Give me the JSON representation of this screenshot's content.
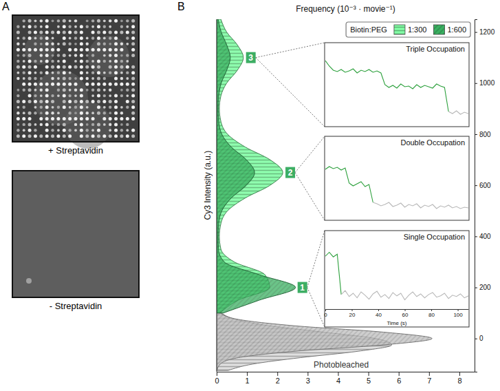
{
  "panels": {
    "A": {
      "label": "A",
      "captions": [
        "+ Streptavidin",
        "- Streptavidin"
      ]
    },
    "B": {
      "label": "B"
    }
  },
  "chart_data": [
    {
      "type": "area",
      "orientation": "horizontal",
      "x_label": "Frequency (10⁻³ · movie⁻¹)",
      "y_label": "Cy3 Intensity (a.u.)",
      "xlim": [
        0,
        8.5
      ],
      "xticks": [
        0,
        1,
        2,
        3,
        4,
        5,
        6,
        7,
        8
      ],
      "ylim": [
        -130,
        1250
      ],
      "yticks": [
        0,
        200,
        400,
        600,
        800,
        1000,
        1200
      ],
      "legend": "top-right",
      "legend_title": "Biotin:PEG",
      "y": [
        100,
        150,
        200,
        250,
        300,
        350,
        400,
        450,
        500,
        550,
        600,
        650,
        700,
        750,
        800,
        850,
        900,
        950,
        1000,
        1050,
        1100,
        1150,
        1200,
        1250
      ],
      "series": [
        {
          "name": "1:300",
          "color": "#5cb874",
          "values": [
            0.11,
            0.71,
            1.75,
            1.59,
            0.58,
            0.14,
            0.09,
            0.14,
            0.36,
            0.94,
            1.76,
            2.18,
            1.76,
            0.94,
            0.36,
            0.14,
            0.09,
            0.14,
            0.33,
            0.68,
            0.88,
            0.68,
            0.33,
            0.14
          ]
        },
        {
          "name": "1:600",
          "color": "#2f8f4e",
          "values": [
            0.22,
            1.4,
            2.6,
            1.4,
            0.25,
            0.06,
            0.05,
            0.07,
            0.17,
            0.48,
            0.98,
            1.25,
            0.98,
            0.48,
            0.17,
            0.07,
            0.05,
            0.07,
            0.15,
            0.33,
            0.45,
            0.33,
            0.15,
            0.05
          ]
        }
      ],
      "photobleached": {
        "label": "Photobleached",
        "color": "#9a9a9a",
        "y": [
          -125,
          -100,
          -75,
          -50,
          -25,
          0,
          25,
          50,
          75,
          100
        ],
        "series": [
          {
            "name": "1:300",
            "values": [
              0.38,
              1.19,
              2.75,
              4.65,
              5.77,
              5.25,
              3.52,
              1.73,
              0.62,
              0.16
            ]
          },
          {
            "name": "1:600",
            "values": [
              0.01,
              0.12,
              0.71,
              2.56,
              5.5,
              7.1,
              5.5,
              2.56,
              0.71,
              0.12
            ]
          }
        ]
      },
      "peaks": [
        {
          "label": "1",
          "x": 2.6,
          "y": 200
        },
        {
          "label": "2",
          "x": 2.2,
          "y": 650
        },
        {
          "label": "3",
          "x": 0.9,
          "y": 1100
        }
      ]
    },
    {
      "type": "line",
      "title": "Single Occupation",
      "x_label": "Time (s)",
      "tick_labels": "x",
      "x": [
        0,
        3,
        6,
        9,
        12,
        15,
        18,
        21,
        24,
        27,
        30,
        33,
        36,
        39,
        42,
        45,
        48,
        51,
        54,
        57,
        60,
        63,
        66,
        69,
        72,
        75,
        78,
        81,
        84,
        87,
        90,
        93,
        96,
        99,
        102,
        105,
        108
      ],
      "xlim": [
        0,
        108
      ],
      "xticks": [
        0,
        20,
        40,
        60,
        80,
        100
      ],
      "ylim": [
        0,
        1
      ],
      "series": [
        {
          "color": "#2ca03c",
          "values": [
            0.8,
            0.86,
            0.79,
            0.83,
            0.22,
            null,
            null,
            null,
            null,
            null,
            null,
            null,
            null,
            null,
            null,
            null,
            null,
            null,
            null,
            null,
            null,
            null,
            null,
            null,
            null,
            null,
            null,
            null,
            null,
            null,
            null,
            null,
            null,
            null,
            null,
            null,
            null
          ]
        },
        {
          "color": "#b8b8b8",
          "values": [
            null,
            null,
            null,
            null,
            0.22,
            0.28,
            0.19,
            0.24,
            0.17,
            0.26,
            0.21,
            0.15,
            0.23,
            0.27,
            0.18,
            0.22,
            0.16,
            0.25,
            0.2,
            0.24,
            0.14,
            0.21,
            0.26,
            0.19,
            0.23,
            0.17,
            0.22,
            0.25,
            0.18,
            0.2,
            0.24,
            0.16,
            0.21,
            0.19,
            0.23,
            0.17,
            0.2
          ]
        }
      ]
    },
    {
      "type": "line",
      "title": "Double Occupation",
      "tick_labels": false,
      "x": [
        0,
        3,
        6,
        9,
        12,
        15,
        18,
        21,
        24,
        27,
        30,
        33,
        36,
        39,
        42,
        45,
        48,
        51,
        54,
        57,
        60,
        63,
        66,
        69,
        72,
        75,
        78,
        81,
        84,
        87,
        90,
        93,
        96,
        99,
        102,
        105,
        108
      ],
      "xlim": [
        0,
        108
      ],
      "ylim": [
        0,
        1
      ],
      "series": [
        {
          "color": "#2ca03c",
          "values": [
            0.7,
            0.74,
            0.71,
            0.73,
            0.69,
            0.72,
            0.5,
            0.46,
            0.49,
            0.52,
            0.45,
            0.48,
            0.22,
            null,
            null,
            null,
            null,
            null,
            null,
            null,
            null,
            null,
            null,
            null,
            null,
            null,
            null,
            null,
            null,
            null,
            null,
            null,
            null,
            null,
            null,
            null,
            null
          ]
        },
        {
          "color": "#b8b8b8",
          "values": [
            null,
            null,
            null,
            null,
            null,
            null,
            null,
            null,
            null,
            null,
            null,
            null,
            0.22,
            0.2,
            0.17,
            0.19,
            0.22,
            0.16,
            0.18,
            0.21,
            0.15,
            0.19,
            0.17,
            0.2,
            0.14,
            0.18,
            0.16,
            0.19,
            0.13,
            0.17,
            0.15,
            0.18,
            0.14,
            0.16,
            0.13,
            0.15,
            0.14
          ]
        }
      ]
    },
    {
      "type": "line",
      "title": "Triple Occupation",
      "tick_labels": false,
      "x": [
        0,
        3,
        6,
        9,
        12,
        15,
        18,
        21,
        24,
        27,
        30,
        33,
        36,
        39,
        42,
        45,
        48,
        51,
        54,
        57,
        60,
        63,
        66,
        69,
        72,
        75,
        78,
        81,
        84,
        87,
        90,
        93,
        96,
        99,
        102,
        105,
        108
      ],
      "xlim": [
        0,
        108
      ],
      "ylim": [
        0,
        1
      ],
      "series": [
        {
          "color": "#2ca03c",
          "values": [
            0.92,
            0.84,
            0.78,
            0.76,
            0.79,
            0.75,
            0.77,
            0.8,
            0.74,
            0.78,
            0.76,
            0.79,
            0.75,
            0.77,
            0.74,
            0.57,
            0.53,
            0.56,
            0.52,
            0.58,
            0.54,
            0.55,
            0.51,
            0.57,
            0.53,
            0.56,
            0.54,
            0.52,
            0.58,
            0.55,
            0.53,
            0.18,
            null,
            null,
            null,
            null,
            null
          ]
        },
        {
          "color": "#b8b8b8",
          "values": [
            null,
            null,
            null,
            null,
            null,
            null,
            null,
            null,
            null,
            null,
            null,
            null,
            null,
            null,
            null,
            null,
            null,
            null,
            null,
            null,
            null,
            null,
            null,
            null,
            null,
            null,
            null,
            null,
            null,
            null,
            null,
            0.18,
            0.15,
            0.19,
            0.14,
            0.17,
            0.15
          ]
        }
      ]
    }
  ]
}
